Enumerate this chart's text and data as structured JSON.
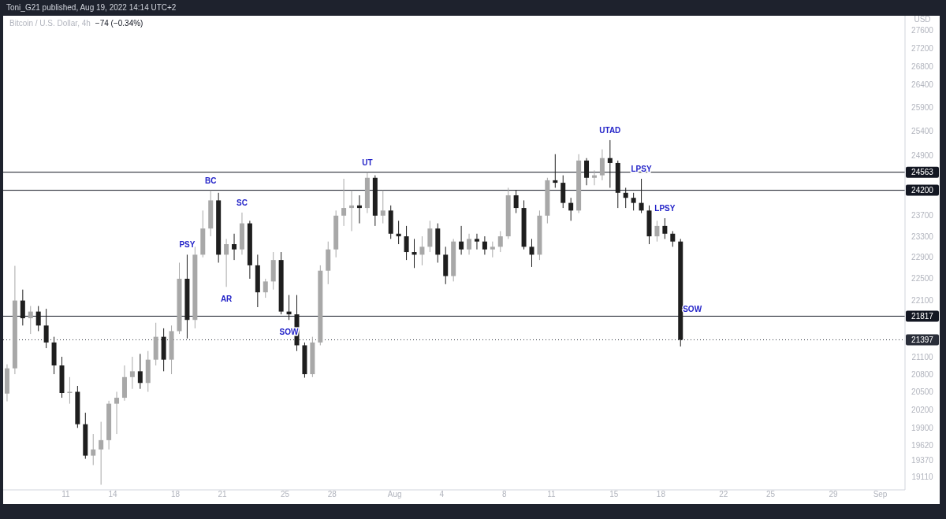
{
  "chart_data": {
    "type": "candlestick",
    "title": "Bitcoin / U.S. Dollar, 4h",
    "subtitle": "−74 (−0.34%)",
    "ylabel": "USD",
    "log": true,
    "annotations": [
      "Toni_G21 published, Aug 19, 2022 14:14 UTC+2",
      {
        "text": "PSY",
        "x": "2022-07-18T18:00",
        "y": 22950
      },
      {
        "text": "BC",
        "x": "2022-07-20T06:00",
        "y": 24200
      },
      {
        "text": "AR",
        "x": "2022-07-21T06:00",
        "y": 22350
      },
      {
        "text": "SC",
        "x": "2022-07-22T06:00",
        "y": 23760
      },
      {
        "text": "SOW",
        "x": "2022-07-25T06:00",
        "y": 21750
      },
      {
        "text": "UT",
        "x": "2022-07-30T06:00",
        "y": 24563
      },
      {
        "text": "UTAD",
        "x": "2022-08-14T18:00",
        "y": 25220
      },
      {
        "text": "LPSY",
        "x": "2022-08-16T18:00",
        "y": 24430
      },
      {
        "text": "LPSY",
        "x": "2022-08-18T06:00",
        "y": 23650
      },
      {
        "text": "SOW",
        "x": "2022-08-20T00:00",
        "y": 21817
      }
    ],
    "x": [
      "2022-07-07T06:00",
      "2022-07-07T18:00",
      "2022-07-08T06:00",
      "2022-07-08T18:00",
      "2022-07-09T06:00",
      "2022-07-09T18:00",
      "2022-07-10T06:00",
      "2022-07-10T18:00",
      "2022-07-11T06:00",
      "2022-07-11T18:00",
      "2022-07-12T06:00",
      "2022-07-12T18:00",
      "2022-07-13T06:00",
      "2022-07-13T18:00",
      "2022-07-14T06:00",
      "2022-07-14T18:00",
      "2022-07-15T06:00",
      "2022-07-15T18:00",
      "2022-07-16T06:00",
      "2022-07-16T18:00",
      "2022-07-17T06:00",
      "2022-07-17T18:00",
      "2022-07-18T06:00",
      "2022-07-18T18:00",
      "2022-07-19T06:00",
      "2022-07-19T18:00",
      "2022-07-20T06:00",
      "2022-07-20T18:00",
      "2022-07-21T06:00",
      "2022-07-21T18:00",
      "2022-07-22T06:00",
      "2022-07-22T18:00",
      "2022-07-23T06:00",
      "2022-07-23T18:00",
      "2022-07-24T06:00",
      "2022-07-24T18:00",
      "2022-07-25T06:00",
      "2022-07-25T18:00",
      "2022-07-26T06:00",
      "2022-07-26T18:00",
      "2022-07-27T06:00",
      "2022-07-27T18:00",
      "2022-07-28T06:00",
      "2022-07-28T18:00",
      "2022-07-29T06:00",
      "2022-07-29T18:00",
      "2022-07-30T06:00",
      "2022-07-30T18:00",
      "2022-07-31T06:00",
      "2022-07-31T18:00",
      "2022-08-01T06:00",
      "2022-08-01T18:00",
      "2022-08-02T06:00",
      "2022-08-02T18:00",
      "2022-08-03T06:00",
      "2022-08-03T18:00",
      "2022-08-04T06:00",
      "2022-08-04T18:00",
      "2022-08-05T06:00",
      "2022-08-05T18:00",
      "2022-08-06T06:00",
      "2022-08-06T18:00",
      "2022-08-07T06:00",
      "2022-08-07T18:00",
      "2022-08-08T06:00",
      "2022-08-08T18:00",
      "2022-08-09T06:00",
      "2022-08-09T18:00",
      "2022-08-10T06:00",
      "2022-08-10T18:00",
      "2022-08-11T06:00",
      "2022-08-11T18:00",
      "2022-08-12T06:00",
      "2022-08-12T18:00",
      "2022-08-13T06:00",
      "2022-08-13T18:00",
      "2022-08-14T06:00",
      "2022-08-14T18:00",
      "2022-08-15T06:00",
      "2022-08-15T18:00",
      "2022-08-16T06:00",
      "2022-08-16T18:00",
      "2022-08-17T06:00",
      "2022-08-17T18:00",
      "2022-08-18T06:00",
      "2022-08-18T18:00",
      "2022-08-19T06:00"
    ],
    "ohlc": [
      [
        20470,
        20970,
        20340,
        20900
      ],
      [
        20900,
        22740,
        20800,
        22100
      ],
      [
        22100,
        22300,
        21650,
        21780
      ],
      [
        21780,
        22000,
        21500,
        21900
      ],
      [
        21900,
        22000,
        21550,
        21650
      ],
      [
        21650,
        21950,
        21250,
        21350
      ],
      [
        21350,
        21450,
        20800,
        20950
      ],
      [
        20950,
        21100,
        20400,
        20480
      ],
      [
        20480,
        20750,
        20300,
        20500
      ],
      [
        20500,
        20600,
        19900,
        19960
      ],
      [
        19960,
        20150,
        19400,
        19450
      ],
      [
        19450,
        19800,
        19300,
        19550
      ],
      [
        19550,
        20000,
        18990,
        19700
      ],
      [
        19700,
        20350,
        19550,
        20300
      ],
      [
        20300,
        20500,
        19800,
        20400
      ],
      [
        20400,
        20950,
        20350,
        20750
      ],
      [
        20750,
        21100,
        20550,
        20850
      ],
      [
        20850,
        21150,
        20550,
        20650
      ],
      [
        20650,
        21200,
        20500,
        21050
      ],
      [
        21050,
        21700,
        20950,
        21450
      ],
      [
        21450,
        21600,
        20850,
        21050
      ],
      [
        21050,
        21650,
        20800,
        21550
      ],
      [
        21550,
        22800,
        21500,
        22500
      ],
      [
        22500,
        22950,
        21420,
        21750
      ],
      [
        21750,
        23100,
        21600,
        22950
      ],
      [
        22950,
        23800,
        22900,
        23450
      ],
      [
        23450,
        24200,
        23300,
        24000
      ],
      [
        24000,
        24150,
        22800,
        22950
      ],
      [
        22950,
        23250,
        22350,
        23150
      ],
      [
        23150,
        23350,
        22850,
        23050
      ],
      [
        23050,
        23760,
        22950,
        23550
      ],
      [
        23550,
        23600,
        22500,
        22750
      ],
      [
        22750,
        22950,
        21980,
        22250
      ],
      [
        22250,
        22500,
        22150,
        22450
      ],
      [
        22450,
        23000,
        22300,
        22850
      ],
      [
        22850,
        23000,
        21850,
        21900
      ],
      [
        21900,
        22200,
        21750,
        21850
      ],
      [
        21850,
        22200,
        21200,
        21300
      ],
      [
        21300,
        21350,
        20740,
        20800
      ],
      [
        20800,
        21450,
        20750,
        21350
      ],
      [
        21350,
        22750,
        21300,
        22650
      ],
      [
        22650,
        23200,
        22400,
        23050
      ],
      [
        23050,
        23800,
        22900,
        23700
      ],
      [
        23700,
        24430,
        23500,
        23850
      ],
      [
        23850,
        24200,
        23400,
        23900
      ],
      [
        23900,
        24100,
        23550,
        23850
      ],
      [
        23850,
        24563,
        23750,
        24450
      ],
      [
        24450,
        24500,
        23500,
        23700
      ],
      [
        23700,
        24200,
        23550,
        23800
      ],
      [
        23800,
        23900,
        23250,
        23350
      ],
      [
        23350,
        23600,
        23150,
        23300
      ],
      [
        23300,
        23500,
        22850,
        23000
      ],
      [
        23000,
        23250,
        22700,
        22950
      ],
      [
        22950,
        23300,
        22750,
        23100
      ],
      [
        23100,
        23600,
        23000,
        23450
      ],
      [
        23450,
        23550,
        22800,
        22950
      ],
      [
        22950,
        23100,
        22400,
        22550
      ],
      [
        22550,
        23250,
        22450,
        23200
      ],
      [
        23200,
        23500,
        22950,
        23050
      ],
      [
        23050,
        23350,
        22950,
        23250
      ],
      [
        23250,
        23350,
        23050,
        23200
      ],
      [
        23200,
        23300,
        22950,
        23050
      ],
      [
        23050,
        23200,
        22900,
        23100
      ],
      [
        23100,
        23400,
        23000,
        23300
      ],
      [
        23300,
        24250,
        23250,
        24100
      ],
      [
        24100,
        24200,
        23750,
        23850
      ],
      [
        23850,
        24000,
        23050,
        23100
      ],
      [
        23100,
        23250,
        22720,
        22950
      ],
      [
        22950,
        23800,
        22850,
        23700
      ],
      [
        23700,
        24450,
        23550,
        24400
      ],
      [
        24400,
        24930,
        24250,
        24350
      ],
      [
        24350,
        24500,
        23850,
        23950
      ],
      [
        23950,
        24050,
        23600,
        23800
      ],
      [
        23800,
        24930,
        23750,
        24800
      ],
      [
        24800,
        24850,
        24300,
        24450
      ],
      [
        24450,
        24600,
        24300,
        24500
      ],
      [
        24500,
        25030,
        24400,
        24850
      ],
      [
        24850,
        25220,
        24250,
        24750
      ],
      [
        24750,
        24800,
        23850,
        24150
      ],
      [
        24150,
        24250,
        23850,
        24050
      ],
      [
        24050,
        24150,
        23800,
        23950
      ],
      [
        23950,
        24430,
        23750,
        23800
      ],
      [
        23800,
        23900,
        23150,
        23300
      ],
      [
        23300,
        23600,
        23200,
        23500
      ],
      [
        23500,
        23650,
        23250,
        23350
      ],
      [
        23350,
        23400,
        23100,
        23200
      ],
      [
        23200,
        23250,
        21280,
        21397
      ]
    ],
    "colors": [
      "#a8a8a8",
      "#a8a8a8",
      "#1e1e1e",
      "#a8a8a8",
      "#1e1e1e",
      "#1e1e1e",
      "#1e1e1e",
      "#1e1e1e",
      "#a8a8a8",
      "#1e1e1e",
      "#1e1e1e",
      "#a8a8a8",
      "#a8a8a8",
      "#a8a8a8",
      "#a8a8a8",
      "#a8a8a8",
      "#a8a8a8",
      "#1e1e1e",
      "#a8a8a8",
      "#a8a8a8",
      "#1e1e1e",
      "#a8a8a8",
      "#a8a8a8",
      "#1e1e1e",
      "#a8a8a8",
      "#a8a8a8",
      "#a8a8a8",
      "#1e1e1e",
      "#a8a8a8",
      "#1e1e1e",
      "#a8a8a8",
      "#1e1e1e",
      "#1e1e1e",
      "#a8a8a8",
      "#a8a8a8",
      "#1e1e1e",
      "#1e1e1e",
      "#1e1e1e",
      "#1e1e1e",
      "#a8a8a8",
      "#a8a8a8",
      "#a8a8a8",
      "#a8a8a8",
      "#a8a8a8",
      "#a8a8a8",
      "#1e1e1e",
      "#a8a8a8",
      "#1e1e1e",
      "#a8a8a8",
      "#1e1e1e",
      "#1e1e1e",
      "#1e1e1e",
      "#1e1e1e",
      "#a8a8a8",
      "#a8a8a8",
      "#1e1e1e",
      "#1e1e1e",
      "#a8a8a8",
      "#1e1e1e",
      "#a8a8a8",
      "#1e1e1e",
      "#1e1e1e",
      "#a8a8a8",
      "#a8a8a8",
      "#a8a8a8",
      "#1e1e1e",
      "#1e1e1e",
      "#1e1e1e",
      "#a8a8a8",
      "#a8a8a8",
      "#1e1e1e",
      "#1e1e1e",
      "#1e1e1e",
      "#a8a8a8",
      "#1e1e1e",
      "#a8a8a8",
      "#a8a8a8",
      "#1e1e1e",
      "#1e1e1e",
      "#1e1e1e",
      "#1e1e1e",
      "#1e1e1e",
      "#1e1e1e",
      "#a8a8a8",
      "#1e1e1e",
      "#1e1e1e",
      "#1e1e1e"
    ],
    "xlim": [
      "2022-07-07T00:00",
      "2022-09-02T14:00"
    ],
    "xticks": [
      {
        "value": "2022-07-11",
        "label": "11"
      },
      {
        "value": "2022-07-14",
        "label": "14"
      },
      {
        "value": "2022-07-18",
        "label": "18"
      },
      {
        "value": "2022-07-21",
        "label": "21"
      },
      {
        "value": "2022-07-25",
        "label": "25"
      },
      {
        "value": "2022-07-28",
        "label": "28"
      },
      {
        "value": "2022-08-01",
        "label": "Aug"
      },
      {
        "value": "2022-08-04",
        "label": "4"
      },
      {
        "value": "2022-08-08",
        "label": "8"
      },
      {
        "value": "2022-08-11",
        "label": "11"
      },
      {
        "value": "2022-08-15",
        "label": "15"
      },
      {
        "value": "2022-08-18",
        "label": "18"
      },
      {
        "value": "2022-08-22",
        "label": "22"
      },
      {
        "value": "2022-08-25",
        "label": "25"
      },
      {
        "value": "2022-08-29",
        "label": "29"
      },
      {
        "value": "2022-09-01",
        "label": "Sep"
      }
    ],
    "ylim": [
      18910,
      27940
    ],
    "yticks": [
      19110,
      19370,
      19620,
      19900,
      20200,
      20500,
      20800,
      21100,
      22100,
      22500,
      22900,
      23300,
      23700,
      24900,
      25400,
      25900,
      26400,
      26800,
      27200,
      27600
    ],
    "ref_lines": [
      {
        "axis": "y",
        "value": 24563,
        "label": "24563",
        "color": "#131722"
      },
      {
        "axis": "y",
        "value": 24200,
        "label": "24200",
        "color": "#131722"
      },
      {
        "axis": "y",
        "value": 21817,
        "label": "21817",
        "color": "#131722"
      },
      {
        "axis": "y",
        "value": 21397,
        "label": "21397",
        "color": "#2a2e39",
        "line_style": "dotted"
      }
    ]
  }
}
